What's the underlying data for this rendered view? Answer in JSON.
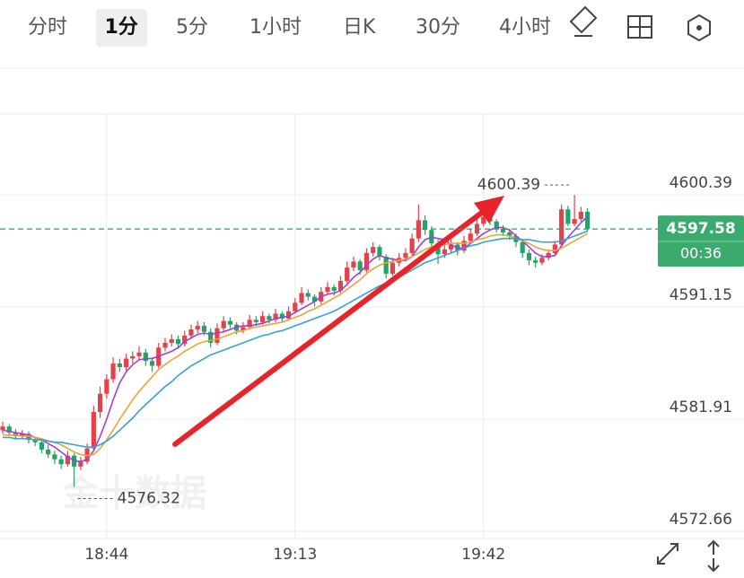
{
  "toolbar": {
    "tabs": [
      "分时",
      "1分",
      "5分",
      "1小时",
      "日K",
      "30分",
      "4小时"
    ],
    "selected_index": 1
  },
  "chart_data": {
    "type": "candlestick",
    "watermark": "金十数据",
    "countdown": "00:36",
    "up_color": "#e5414b",
    "down_color": "#26a269",
    "grid": true,
    "ylim": [
      4572.07,
      4607.06
    ],
    "yticks": [
      4600.39,
      4591.15,
      4581.91,
      4572.66
    ],
    "categories": [
      null,
      null,
      null,
      null,
      null,
      null,
      null,
      null,
      null,
      null,
      null,
      null,
      null,
      null,
      null,
      null,
      "18:44",
      null,
      null,
      null,
      null,
      null,
      null,
      null,
      null,
      null,
      null,
      null,
      null,
      null,
      null,
      null,
      null,
      null,
      null,
      null,
      null,
      null,
      null,
      null,
      null,
      null,
      null,
      null,
      null,
      "19:13",
      null,
      null,
      null,
      null,
      null,
      null,
      null,
      null,
      null,
      null,
      null,
      null,
      null,
      null,
      null,
      null,
      null,
      null,
      null,
      null,
      null,
      null,
      null,
      null,
      null,
      null,
      null,
      null,
      "19:42",
      null,
      null,
      null,
      null,
      null,
      null,
      null,
      null,
      null,
      null,
      null,
      null,
      null,
      null,
      null,
      null
    ],
    "candles": [
      [
        4581.0,
        4581.7,
        4580.7,
        4581.3
      ],
      [
        4581.3,
        4581.5,
        4580.5,
        4580.8
      ],
      [
        4580.8,
        4581.1,
        4580.2,
        4580.5
      ],
      [
        4580.5,
        4581.0,
        4580.3,
        4580.7
      ],
      [
        4580.7,
        4580.9,
        4579.9,
        4580.2
      ],
      [
        4580.2,
        4580.4,
        4579.7,
        4580.0
      ],
      [
        4580.0,
        4580.2,
        4579.1,
        4579.4
      ],
      [
        4579.4,
        4579.8,
        4578.7,
        4579.0
      ],
      [
        4579.0,
        4579.3,
        4578.2,
        4578.6
      ],
      [
        4578.6,
        4578.9,
        4577.8,
        4578.2
      ],
      [
        4578.2,
        4579.3,
        4578.0,
        4578.9
      ],
      [
        4578.9,
        4579.1,
        4576.32,
        4578.0
      ],
      [
        4578.0,
        4578.8,
        4577.7,
        4578.4
      ],
      [
        4578.4,
        4579.9,
        4578.2,
        4579.5
      ],
      [
        4579.5,
        4583.0,
        4579.3,
        4582.5
      ],
      [
        4582.5,
        4584.6,
        4582.0,
        4584.0
      ],
      [
        4584.0,
        4585.6,
        4583.6,
        4585.2
      ],
      [
        4585.2,
        4587.0,
        4584.9,
        4586.5
      ],
      [
        4586.5,
        4586.9,
        4585.8,
        4586.2
      ],
      [
        4586.2,
        4587.3,
        4585.9,
        4586.9
      ],
      [
        4586.9,
        4587.5,
        4586.5,
        4587.1
      ],
      [
        4587.1,
        4587.9,
        4586.8,
        4587.4
      ],
      [
        4587.4,
        4587.7,
        4586.3,
        4586.7
      ],
      [
        4586.7,
        4587.0,
        4585.8,
        4586.3
      ],
      [
        4586.3,
        4588.2,
        4586.1,
        4587.8
      ],
      [
        4587.8,
        4588.6,
        4587.5,
        4588.2
      ],
      [
        4588.2,
        4588.9,
        4587.9,
        4588.5
      ],
      [
        4588.5,
        4588.8,
        4587.7,
        4588.1
      ],
      [
        4588.1,
        4589.2,
        4587.9,
        4588.8
      ],
      [
        4588.8,
        4589.7,
        4588.5,
        4589.3
      ],
      [
        4589.3,
        4590.0,
        4589.0,
        4589.6
      ],
      [
        4589.6,
        4589.9,
        4588.8,
        4589.1
      ],
      [
        4589.1,
        4589.4,
        4587.8,
        4588.2
      ],
      [
        4588.2,
        4589.8,
        4588.0,
        4589.4
      ],
      [
        4589.4,
        4590.4,
        4589.1,
        4590.0
      ],
      [
        4590.0,
        4590.3,
        4589.4,
        4589.7
      ],
      [
        4589.7,
        4589.9,
        4588.9,
        4589.2
      ],
      [
        4589.2,
        4589.9,
        4589.0,
        4589.5
      ],
      [
        4589.5,
        4590.5,
        4589.3,
        4590.1
      ],
      [
        4590.1,
        4590.4,
        4589.6,
        4589.9
      ],
      [
        4589.9,
        4590.8,
        4589.7,
        4590.4
      ],
      [
        4590.4,
        4590.6,
        4589.8,
        4590.1
      ],
      [
        4590.1,
        4591.0,
        4589.9,
        4590.6
      ],
      [
        4590.6,
        4590.8,
        4589.9,
        4590.2
      ],
      [
        4590.2,
        4591.2,
        4590.0,
        4590.8
      ],
      [
        4590.8,
        4591.9,
        4590.6,
        4591.5
      ],
      [
        4591.5,
        4592.8,
        4591.3,
        4592.3
      ],
      [
        4592.3,
        4592.6,
        4591.7,
        4592.0
      ],
      [
        4592.0,
        4592.2,
        4591.2,
        4591.6
      ],
      [
        4591.6,
        4592.8,
        4591.4,
        4592.4
      ],
      [
        4592.4,
        4593.2,
        4592.2,
        4592.8
      ],
      [
        4592.8,
        4593.0,
        4592.1,
        4592.5
      ],
      [
        4592.5,
        4593.7,
        4592.3,
        4593.3
      ],
      [
        4593.3,
        4594.9,
        4593.1,
        4594.4
      ],
      [
        4594.4,
        4595.3,
        4594.1,
        4594.9
      ],
      [
        4594.9,
        4595.1,
        4593.8,
        4594.2
      ],
      [
        4594.2,
        4596.0,
        4594.0,
        4595.6
      ],
      [
        4595.6,
        4596.5,
        4595.3,
        4596.1
      ],
      [
        4596.1,
        4596.3,
        4595.0,
        4595.3
      ],
      [
        4595.3,
        4595.5,
        4593.5,
        4593.9
      ],
      [
        4593.9,
        4595.2,
        4593.7,
        4594.8
      ],
      [
        4594.8,
        4595.6,
        4594.5,
        4595.2
      ],
      [
        4595.2,
        4596.0,
        4594.9,
        4595.6
      ],
      [
        4595.6,
        4597.2,
        4595.4,
        4596.8
      ],
      [
        4596.8,
        4599.6,
        4596.5,
        4598.3
      ],
      [
        4598.3,
        4598.7,
        4597.1,
        4597.5
      ],
      [
        4597.5,
        4597.8,
        4596.0,
        4596.4
      ],
      [
        4596.4,
        4596.7,
        4594.7,
        4595.5
      ],
      [
        4595.5,
        4596.3,
        4595.2,
        4595.9
      ],
      [
        4595.9,
        4596.7,
        4595.6,
        4596.3
      ],
      [
        4596.3,
        4596.5,
        4595.4,
        4595.8
      ],
      [
        4595.8,
        4597.0,
        4595.6,
        4596.6
      ],
      [
        4596.6,
        4597.6,
        4596.4,
        4597.2
      ],
      [
        4597.2,
        4598.4,
        4597.0,
        4598.0
      ],
      [
        4598.0,
        4599.0,
        4597.8,
        4598.6
      ],
      [
        4598.6,
        4598.9,
        4597.9,
        4598.2
      ],
      [
        4598.2,
        4598.4,
        4597.3,
        4597.6
      ],
      [
        4597.6,
        4597.9,
        4597.0,
        4597.3
      ],
      [
        4597.3,
        4597.6,
        4596.7,
        4597.0
      ],
      [
        4597.0,
        4597.2,
        4596.1,
        4596.5
      ],
      [
        4596.5,
        4596.7,
        4595.2,
        4595.6
      ],
      [
        4595.6,
        4595.9,
        4594.6,
        4595.0
      ],
      [
        4595.0,
        4595.3,
        4594.4,
        4594.8
      ],
      [
        4594.8,
        4595.5,
        4594.6,
        4595.2
      ],
      [
        4595.2,
        4595.9,
        4595.0,
        4595.6
      ],
      [
        4595.6,
        4596.6,
        4595.4,
        4596.3
      ],
      [
        4596.3,
        4599.6,
        4596.1,
        4599.2
      ],
      [
        4599.2,
        4599.5,
        4597.8,
        4598.0
      ],
      [
        4598.0,
        4600.39,
        4597.8,
        4598.4
      ],
      [
        4598.4,
        4599.4,
        4598.2,
        4599.0
      ],
      [
        4599.0,
        4599.3,
        4597.4,
        4597.58
      ]
    ],
    "series": [
      {
        "color": "#a23fd6",
        "values": [
          4581.0,
          4580.9,
          4580.8,
          4580.7,
          4580.6,
          4580.4,
          4580.2,
          4579.9,
          4579.6,
          4579.2,
          4578.8,
          4578.5,
          4578.4,
          4578.6,
          4579.3,
          4580.5,
          4581.9,
          4583.5,
          4584.9,
          4585.8,
          4586.4,
          4586.8,
          4586.9,
          4586.9,
          4587.1,
          4587.3,
          4587.5,
          4587.8,
          4588.3,
          4588.6,
          4588.9,
          4589.0,
          4588.9,
          4589.0,
          4589.1,
          4589.3,
          4589.5,
          4589.6,
          4589.6,
          4589.7,
          4589.8,
          4590.0,
          4590.2,
          4590.3,
          4590.4,
          4590.7,
          4591.0,
          4591.3,
          4591.6,
          4592.0,
          4592.2,
          4592.3,
          4592.5,
          4593.0,
          4593.6,
          4594.0,
          4594.6,
          4595.1,
          4595.4,
          4595.2,
          4595.1,
          4595.0,
          4595.0,
          4595.3,
          4596.1,
          4596.7,
          4596.9,
          4596.8,
          4596.7,
          4596.3,
          4596.0,
          4596.0,
          4596.4,
          4596.8,
          4597.2,
          4597.5,
          4597.7,
          4597.7,
          4597.5,
          4597.0,
          4596.6,
          4596.1,
          4595.6,
          4595.3,
          4595.3,
          4595.4,
          4596.2,
          4596.9,
          4597.5,
          4598.1,
          4598.6
        ]
      },
      {
        "color": "#f0a232",
        "values": [
          4580.6,
          4580.6,
          4580.6,
          4580.5,
          4580.5,
          4580.4,
          4580.3,
          4580.1,
          4580.0,
          4579.8,
          4579.5,
          4579.2,
          4579.0,
          4578.9,
          4579.0,
          4579.5,
          4580.2,
          4581.0,
          4581.9,
          4582.7,
          4583.5,
          4584.2,
          4584.8,
          4585.4,
          4586.0,
          4586.4,
          4586.8,
          4587.1,
          4587.5,
          4587.8,
          4588.1,
          4588.3,
          4588.4,
          4588.5,
          4588.7,
          4588.9,
          4589.1,
          4589.2,
          4589.4,
          4589.5,
          4589.6,
          4589.7,
          4589.8,
          4589.9,
          4590.1,
          4590.3,
          4590.5,
          4590.8,
          4591.0,
          4591.3,
          4591.6,
          4591.9,
          4592.2,
          4592.6,
          4593.0,
          4593.4,
          4593.9,
          4594.3,
          4594.6,
          4594.8,
          4594.9,
          4595.0,
          4595.1,
          4595.3,
          4595.6,
          4595.9,
          4596.1,
          4596.2,
          4596.3,
          4596.4,
          4596.4,
          4596.4,
          4596.5,
          4596.7,
          4596.8,
          4597.0,
          4597.1,
          4597.1,
          4597.0,
          4596.8,
          4596.6,
          4596.4,
          4596.1,
          4595.9,
          4595.8,
          4595.8,
          4596.0,
          4596.3,
          4596.6,
          4596.9,
          4597.2
        ]
      },
      {
        "color": "#2ea6cf",
        "values": [
          4580.4,
          4580.4,
          4580.3,
          4580.3,
          4580.3,
          4580.2,
          4580.2,
          4580.1,
          4580.0,
          4580.0,
          4579.9,
          4579.8,
          4579.7,
          4579.6,
          4579.6,
          4579.8,
          4580.1,
          4580.5,
          4581.0,
          4581.5,
          4582.0,
          4582.6,
          4583.1,
          4583.6,
          4584.1,
          4584.6,
          4585.0,
          4585.5,
          4585.9,
          4586.3,
          4586.6,
          4586.9,
          4587.2,
          4587.4,
          4587.6,
          4587.8,
          4588.0,
          4588.2,
          4588.4,
          4588.6,
          4588.8,
          4588.9,
          4589.1,
          4589.2,
          4589.4,
          4589.6,
          4589.8,
          4590.0,
          4590.2,
          4590.4,
          4590.6,
          4590.8,
          4591.1,
          4591.4,
          4591.7,
          4592.0,
          4592.3,
          4592.6,
          4592.9,
          4593.1,
          4593.4,
          4593.6,
          4593.9,
          4594.2,
          4594.5,
          4594.8,
          4595.0,
          4595.2,
          4595.4,
          4595.6,
          4595.8,
          4596.0,
          4596.2,
          4596.3,
          4596.5,
          4596.6,
          4596.7,
          4596.8,
          4596.8,
          4596.8,
          4596.7,
          4596.7,
          4596.6,
          4596.5,
          4596.5,
          4596.5,
          4596.6,
          4596.8,
          4597.0,
          4597.2,
          4597.4
        ]
      }
    ]
  }
}
